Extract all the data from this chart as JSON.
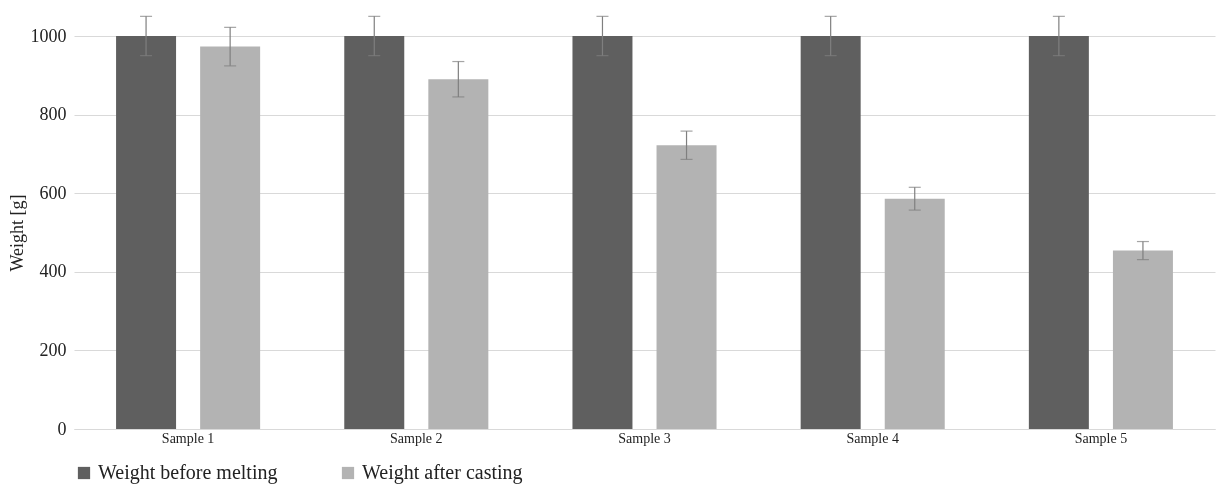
{
  "chart_data": {
    "type": "bar",
    "ylabel": "Weight [g]",
    "categories": [
      "Sample 1",
      "Sample 2",
      "Sample 3",
      "Sample 4",
      "Sample 5"
    ],
    "series": [
      {
        "name": "Weight before melting",
        "color": "#5f5f5f",
        "values": [
          1000,
          1000,
          1000,
          1000,
          1000
        ],
        "errors": [
          50,
          50,
          50,
          50,
          50
        ]
      },
      {
        "name": "Weight after casting",
        "color": "#b3b3b3",
        "values": [
          973,
          890,
          722,
          586,
          454
        ],
        "errors": [
          49,
          45,
          36,
          29,
          23
        ]
      }
    ],
    "ylim": [
      0,
      1000
    ],
    "yticks": [
      0,
      200,
      400,
      600,
      800,
      1000
    ],
    "grid": "y",
    "legend": "bottom"
  }
}
